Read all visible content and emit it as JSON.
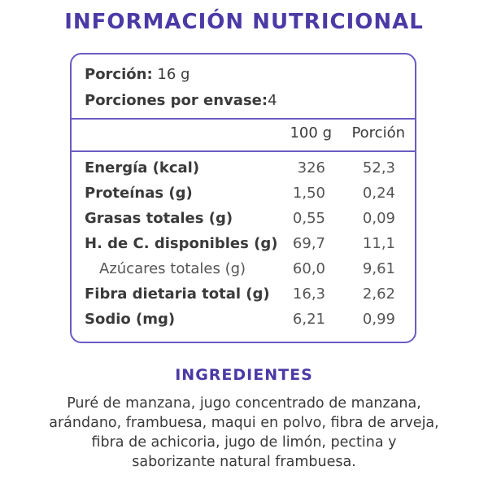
{
  "title": "INFORMACIÓN NUTRICIONAL",
  "serving": {
    "portion_label": "Porción:",
    "portion_value": "16 g",
    "per_package_label": "Porciones por envase:",
    "per_package_value": "4"
  },
  "columns": {
    "per100": "100 g",
    "perPortion": "Porción"
  },
  "rows": [
    {
      "name": "Energía (kcal)",
      "per100": "326",
      "perPortion": "52,3"
    },
    {
      "name": "Proteínas (g)",
      "per100": "1,50",
      "perPortion": "0,24"
    },
    {
      "name": "Grasas totales (g)",
      "per100": "0,55",
      "perPortion": "0,09"
    },
    {
      "name": "H. de C. disponibles (g)",
      "per100": "69,7",
      "perPortion": "11,1"
    },
    {
      "name": "Azúcares totales (g)",
      "per100": "60,0",
      "perPortion": "9,61"
    },
    {
      "name": "Fibra dietaria total (g)",
      "per100": "16,3",
      "perPortion": "2,62"
    },
    {
      "name": "Sodio (mg)",
      "per100": "6,21",
      "perPortion": "0,99"
    }
  ],
  "ingredients": {
    "title": "INGREDIENTES",
    "lines": [
      "Puré de manzana, jugo concentrado de manzana,",
      "arándano, frambuesa, maqui en polvo, fibra de arveja,",
      "fibra de achicoria, jugo de limón, pectina y",
      "saborizante natural frambuesa."
    ]
  },
  "colors": {
    "accent": "#4b3aa6",
    "border": "#6a5cc2",
    "text": "#3a3a3a"
  }
}
